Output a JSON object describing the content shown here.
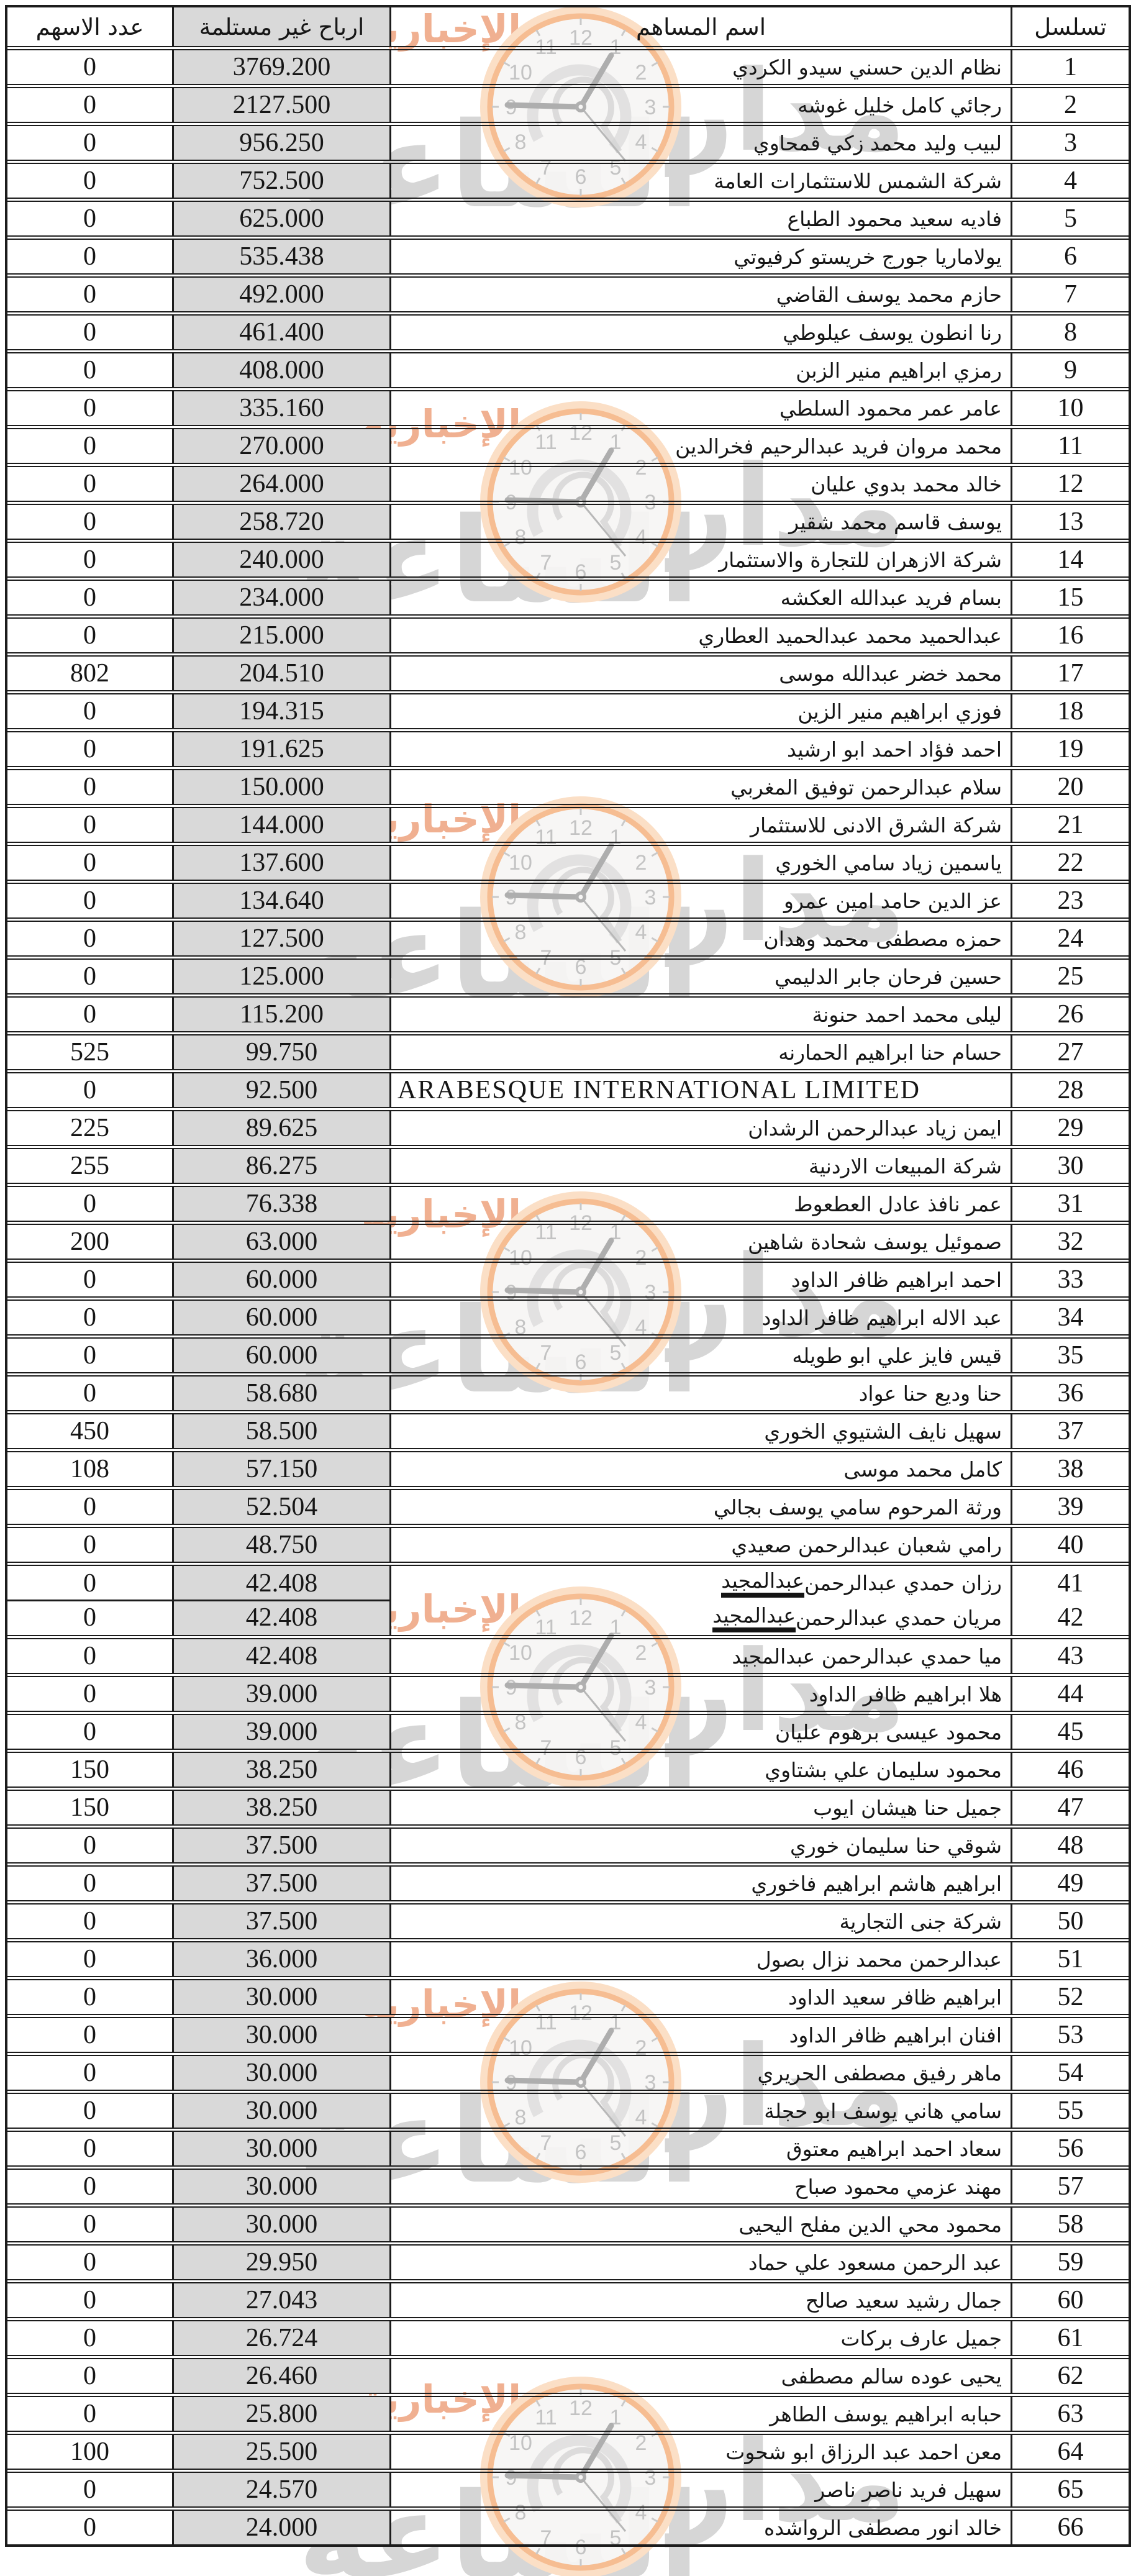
{
  "header": {
    "col_shares": "عدد الاسهم",
    "col_profit": "ارباح غير مستلمة",
    "col_name": "اسم المساهم",
    "col_serial": "تسلسل"
  },
  "colors": {
    "profit_column_bg": "#d9d9d9",
    "border": "#1c1c1c",
    "watermark_orange": "#f0b091",
    "watermark_gray": "#d6d6d6",
    "clock_ring": "#f6bd92"
  },
  "watermark": {
    "brand_big": "الساعة",
    "brand_right": "مدار",
    "brand_small": "الإخبارية",
    "clock_numbers": [
      "1",
      "2",
      "3",
      "4",
      "5",
      "6",
      "7",
      "8",
      "9",
      "10",
      "11",
      "12"
    ]
  },
  "rows": [
    {
      "serial": "1",
      "name": "نظام الدين حسني سيدو الكردي",
      "profit": "3769.200",
      "shares": "0"
    },
    {
      "serial": "2",
      "name": "رجائي كامل خليل غوشه",
      "profit": "2127.500",
      "shares": "0"
    },
    {
      "serial": "3",
      "name": "لبيب وليد محمد زكي قمحاوي",
      "profit": "956.250",
      "shares": "0"
    },
    {
      "serial": "4",
      "name": "شركة الشمس للاستثمارات العامة",
      "profit": "752.500",
      "shares": "0"
    },
    {
      "serial": "5",
      "name": "فاديه سعيد محمود الطباع",
      "profit": "625.000",
      "shares": "0"
    },
    {
      "serial": "6",
      "name": "يولاماريا جورج خريستو كرفيوتي",
      "profit": "535.438",
      "shares": "0"
    },
    {
      "serial": "7",
      "name": "حازم محمد يوسف القاضي",
      "profit": "492.000",
      "shares": "0"
    },
    {
      "serial": "8",
      "name": "رنا انطون يوسف عيلوطي",
      "profit": "461.400",
      "shares": "0"
    },
    {
      "serial": "9",
      "name": "رمزي ابراهيم منير الزبن",
      "profit": "408.000",
      "shares": "0"
    },
    {
      "serial": "10",
      "name": "عامر عمر محمود السلطي",
      "profit": "335.160",
      "shares": "0"
    },
    {
      "serial": "11",
      "name": "محمد مروان فريد عبدالرحيم فخرالدين",
      "profit": "270.000",
      "shares": "0"
    },
    {
      "serial": "12",
      "name": "خالد محمد بدوي عليان",
      "profit": "264.000",
      "shares": "0"
    },
    {
      "serial": "13",
      "name": "يوسف قاسم محمد شقير",
      "profit": "258.720",
      "shares": "0"
    },
    {
      "serial": "14",
      "name": "شركة الازهران للتجارة والاستثمار",
      "profit": "240.000",
      "shares": "0"
    },
    {
      "serial": "15",
      "name": "بسام فريد عبدالله العكشه",
      "profit": "234.000",
      "shares": "0"
    },
    {
      "serial": "16",
      "name": "عبدالحميد محمد عبدالحميد العطاري",
      "profit": "215.000",
      "shares": "0"
    },
    {
      "serial": "17",
      "name": "محمد خضر عبدالله موسى",
      "profit": "204.510",
      "shares": "802"
    },
    {
      "serial": "18",
      "name": "فوزي ابراهيم منير الزين",
      "profit": "194.315",
      "shares": "0"
    },
    {
      "serial": "19",
      "name": "احمد فؤاد احمد ابو ارشيد",
      "profit": "191.625",
      "shares": "0"
    },
    {
      "serial": "20",
      "name": "سلام عبدالرحمن توفيق المغربي",
      "profit": "150.000",
      "shares": "0"
    },
    {
      "serial": "21",
      "name": "شركة الشرق الادنى للاستثمار",
      "profit": "144.000",
      "shares": "0"
    },
    {
      "serial": "22",
      "name": "ياسمين زياد سامي الخوري",
      "profit": "137.600",
      "shares": "0"
    },
    {
      "serial": "23",
      "name": "عز الدين حامد امين عمرو",
      "profit": "134.640",
      "shares": "0"
    },
    {
      "serial": "24",
      "name": "حمزه مصطفى محمد وهدان",
      "profit": "127.500",
      "shares": "0"
    },
    {
      "serial": "25",
      "name": "حسين فرحان جابر الدليمي",
      "profit": "125.000",
      "shares": "0"
    },
    {
      "serial": "26",
      "name": "ليلى محمد احمد حنونة",
      "profit": "115.200",
      "shares": "0"
    },
    {
      "serial": "27",
      "name": "حسام حنا ابراهيم الحمارنه",
      "profit": "99.750",
      "shares": "525"
    },
    {
      "serial": "28",
      "name": "ARABESQUE  INTERNATIONAL  LIMITED",
      "profit": "92.500",
      "shares": "0"
    },
    {
      "serial": "29",
      "name": "ايمن زياد عبدالرحمن الرشدان",
      "profit": "89.625",
      "shares": "225"
    },
    {
      "serial": "30",
      "name": "شركة المبيعات الاردنية",
      "profit": "86.275",
      "shares": "255"
    },
    {
      "serial": "31",
      "name": "عمر نافذ عادل العطعوط",
      "profit": "76.338",
      "shares": "0"
    },
    {
      "serial": "32",
      "name": "صموئيل يوسف شحادة شاهين",
      "profit": "63.000",
      "shares": "200"
    },
    {
      "serial": "33",
      "name": "احمد ابراهيم ظافر الداود",
      "profit": "60.000",
      "shares": "0"
    },
    {
      "serial": "34",
      "name": "عبد الاله ابراهيم ظافر الداود",
      "profit": "60.000",
      "shares": "0"
    },
    {
      "serial": "35",
      "name": "قيس فايز علي ابو طويله",
      "profit": "60.000",
      "shares": "0"
    },
    {
      "serial": "36",
      "name": "حنا وديع حنا عواد",
      "profit": "58.680",
      "shares": "0"
    },
    {
      "serial": "37",
      "name": "سهيل نايف الشتيوي الخوري",
      "profit": "58.500",
      "shares": "450"
    },
    {
      "serial": "38",
      "name": "كامل محمد موسى",
      "profit": "57.150",
      "shares": "108"
    },
    {
      "serial": "39",
      "name": "ورثة المرحوم سامي يوسف بجالي",
      "profit": "52.504",
      "shares": "0"
    },
    {
      "serial": "40",
      "name": "رامي شعبان عبدالرحمن صعيدي",
      "profit": "48.750",
      "shares": "0"
    },
    {
      "serial": "41",
      "name": "رزان حمدي عبدالرحمن عبدالمجيد",
      "profit": "42.408",
      "shares": "0",
      "underline": true,
      "merge_next": true
    },
    {
      "serial": "42",
      "name": "مريان حمدي عبدالرحمن عبدالمجيد",
      "profit": "42.408",
      "shares": "0",
      "underline": true
    },
    {
      "serial": "43",
      "name": "ميا حمدي عبدالرحمن عبدالمجيد",
      "profit": "42.408",
      "shares": "0"
    },
    {
      "serial": "44",
      "name": "هلا ابراهيم ظافر الداود",
      "profit": "39.000",
      "shares": "0"
    },
    {
      "serial": "45",
      "name": "محمود عيسى برهوم عليان",
      "profit": "39.000",
      "shares": "0"
    },
    {
      "serial": "46",
      "name": "محمود سليمان علي بشتاوي",
      "profit": "38.250",
      "shares": "150"
    },
    {
      "serial": "47",
      "name": "جميل حنا هيشان ايوب",
      "profit": "38.250",
      "shares": "150"
    },
    {
      "serial": "48",
      "name": "شوقي حنا سليمان خوري",
      "profit": "37.500",
      "shares": "0"
    },
    {
      "serial": "49",
      "name": "ابراهيم هاشم ابراهيم فاخوري",
      "profit": "37.500",
      "shares": "0"
    },
    {
      "serial": "50",
      "name": "شركة جنى التجارية",
      "profit": "37.500",
      "shares": "0"
    },
    {
      "serial": "51",
      "name": "عبدالرحمن محمد نزال بصول",
      "profit": "36.000",
      "shares": "0"
    },
    {
      "serial": "52",
      "name": "ابراهيم ظافر سعيد الداود",
      "profit": "30.000",
      "shares": "0"
    },
    {
      "serial": "53",
      "name": "افنان ابراهيم ظافر الداود",
      "profit": "30.000",
      "shares": "0"
    },
    {
      "serial": "54",
      "name": "ماهر رفيق مصطفى الحريري",
      "profit": "30.000",
      "shares": "0"
    },
    {
      "serial": "55",
      "name": "سامي هاني يوسف ابو حجلة",
      "profit": "30.000",
      "shares": "0"
    },
    {
      "serial": "56",
      "name": "سعاد احمد ابراهيم معتوق",
      "profit": "30.000",
      "shares": "0"
    },
    {
      "serial": "57",
      "name": "مهند عزمي محمود صباح",
      "profit": "30.000",
      "shares": "0"
    },
    {
      "serial": "58",
      "name": "محمود محي الدين مفلح اليحيى",
      "profit": "30.000",
      "shares": "0"
    },
    {
      "serial": "59",
      "name": "عبد الرحمن مسعود علي حماد",
      "profit": "29.950",
      "shares": "0"
    },
    {
      "serial": "60",
      "name": "جمال رشيد سعيد صالح",
      "profit": "27.043",
      "shares": "0"
    },
    {
      "serial": "61",
      "name": "جميل عارف بركات",
      "profit": "26.724",
      "shares": "0"
    },
    {
      "serial": "62",
      "name": "يحيى عوده سالم مصطفى",
      "profit": "26.460",
      "shares": "0"
    },
    {
      "serial": "63",
      "name": "حبابه ابراهيم يوسف الطاهر",
      "profit": "25.800",
      "shares": "0"
    },
    {
      "serial": "64",
      "name": "معن احمد عبد الرزاق ابو شحوت",
      "profit": "25.500",
      "shares": "100"
    },
    {
      "serial": "65",
      "name": "سهيل فريد ناصر ناصر",
      "profit": "24.570",
      "shares": "0"
    },
    {
      "serial": "66",
      "name": "خالد انور مصطفى الرواشده",
      "profit": "24.000",
      "shares": "0"
    }
  ]
}
